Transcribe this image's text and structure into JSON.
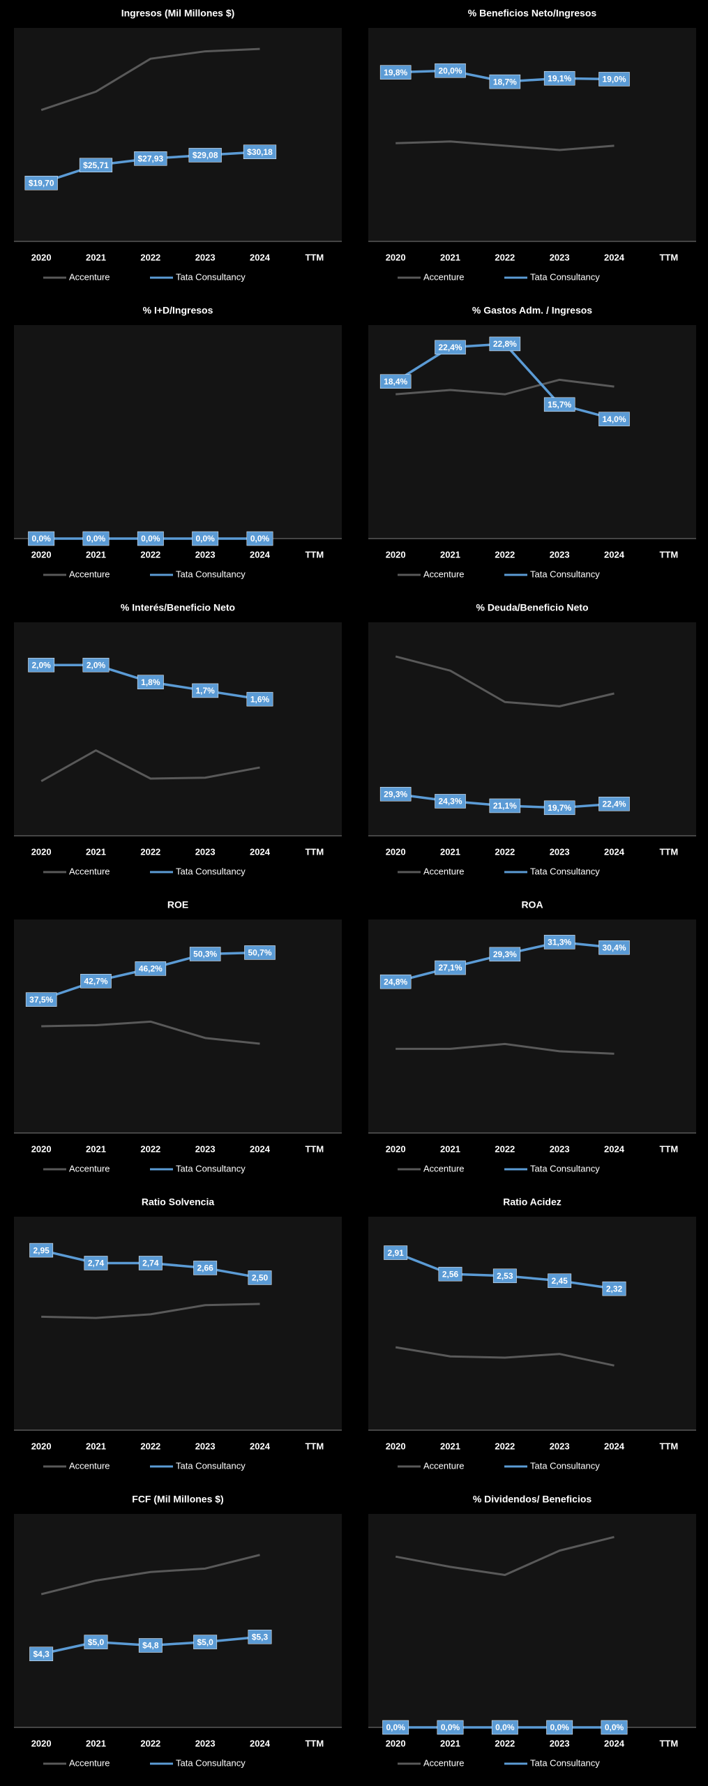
{
  "chart_data": [
    {
      "type": "line",
      "title": "Ingresos (Mil Millones $)",
      "categories": [
        "2020",
        "2021",
        "2022",
        "2023",
        "2024",
        "TTM"
      ],
      "ylim": [
        0,
        72
      ],
      "series": [
        {
          "name": "Accenture",
          "color": "#595959",
          "values": [
            44.3,
            50.5,
            61.6,
            64.1,
            64.9,
            null
          ]
        },
        {
          "name": "Tata Consultancy",
          "color": "#5b9bd5",
          "values": [
            19.7,
            25.71,
            27.93,
            29.08,
            30.18,
            null
          ],
          "value_labels": [
            "$19,70",
            "$25,71",
            "$27,93",
            "$29,08",
            "$30,18",
            null
          ]
        }
      ]
    },
    {
      "type": "line",
      "title": "% Beneficios Neto/Ingresos",
      "categories": [
        "2020",
        "2021",
        "2022",
        "2023",
        "2024",
        "TTM"
      ],
      "ylim": [
        0,
        25
      ],
      "series": [
        {
          "name": "Accenture",
          "color": "#595959",
          "values": [
            11.5,
            11.7,
            11.2,
            10.7,
            11.2,
            null
          ]
        },
        {
          "name": "Tata Consultancy",
          "color": "#5b9bd5",
          "values": [
            19.8,
            20.0,
            18.7,
            19.1,
            19.0,
            null
          ],
          "value_labels": [
            "19,8%",
            "20,0%",
            "18,7%",
            "19,1%",
            "19,0%",
            null
          ]
        }
      ]
    },
    {
      "type": "line",
      "title": "% I+D/Ingresos",
      "categories": [
        "2020",
        "2021",
        "2022",
        "2023",
        "2024",
        "TTM"
      ],
      "ylim": [
        0,
        1
      ],
      "series": [
        {
          "name": "Accenture",
          "color": "#595959",
          "values": [
            null,
            null,
            null,
            null,
            null,
            null
          ]
        },
        {
          "name": "Tata Consultancy",
          "color": "#5b9bd5",
          "values": [
            0.0,
            0.0,
            0.0,
            0.0,
            0.0,
            null
          ],
          "value_labels": [
            "0,0%",
            "0,0%",
            "0,0%",
            "0,0%",
            "0,0%",
            null
          ]
        }
      ]
    },
    {
      "type": "line",
      "title": "% Gastos Adm. / Ingresos",
      "categories": [
        "2020",
        "2021",
        "2022",
        "2023",
        "2024",
        "TTM"
      ],
      "ylim": [
        0,
        25
      ],
      "series": [
        {
          "name": "Accenture",
          "color": "#595959",
          "values": [
            16.9,
            17.4,
            16.9,
            18.6,
            17.8,
            null
          ]
        },
        {
          "name": "Tata Consultancy",
          "color": "#5b9bd5",
          "values": [
            18.4,
            22.4,
            22.8,
            15.7,
            14.0,
            null
          ],
          "value_labels": [
            "18,4%",
            "22,4%",
            "22,8%",
            "15,7%",
            "14,0%",
            null
          ]
        }
      ]
    },
    {
      "type": "line",
      "title": "% Interés/Beneficio  Neto",
      "categories": [
        "2020",
        "2021",
        "2022",
        "2023",
        "2024",
        "TTM"
      ],
      "ylim": [
        0,
        2.5
      ],
      "series": [
        {
          "name": "Accenture",
          "color": "#595959",
          "values": [
            0.64,
            1.0,
            0.67,
            0.68,
            0.8,
            null
          ]
        },
        {
          "name": "Tata Consultancy",
          "color": "#5b9bd5",
          "values": [
            2.0,
            2.0,
            1.8,
            1.7,
            1.6,
            null
          ],
          "value_labels": [
            "2,0%",
            "2,0%",
            "1,8%",
            "1,7%",
            "1,6%",
            null
          ]
        }
      ]
    },
    {
      "type": "line",
      "title": "% Deuda/Beneficio  Neto",
      "categories": [
        "2020",
        "2021",
        "2022",
        "2023",
        "2024",
        "TTM"
      ],
      "ylim": [
        0,
        150
      ],
      "series": [
        {
          "name": "Accenture",
          "color": "#595959",
          "values": [
            126,
            116,
            94,
            91,
            100,
            null
          ]
        },
        {
          "name": "Tata Consultancy",
          "color": "#5b9bd5",
          "values": [
            29.3,
            24.3,
            21.1,
            19.7,
            22.4,
            null
          ],
          "value_labels": [
            "29,3%",
            "24,3%",
            "21,1%",
            "19,7%",
            "22,4%",
            null
          ]
        }
      ]
    },
    {
      "type": "line",
      "title": "ROE",
      "categories": [
        "2020",
        "2021",
        "2022",
        "2023",
        "2024",
        "TTM"
      ],
      "ylim": [
        0,
        60
      ],
      "series": [
        {
          "name": "Accenture",
          "color": "#595959",
          "values": [
            30.0,
            30.3,
            31.3,
            26.7,
            25.1,
            null
          ]
        },
        {
          "name": "Tata Consultancy",
          "color": "#5b9bd5",
          "values": [
            37.5,
            42.7,
            46.2,
            50.3,
            50.7,
            null
          ],
          "value_labels": [
            "37,5%",
            "42,7%",
            "46,2%",
            "50,3%",
            "50,7%",
            null
          ]
        }
      ]
    },
    {
      "type": "line",
      "title": "ROA",
      "categories": [
        "2020",
        "2021",
        "2022",
        "2023",
        "2024",
        "TTM"
      ],
      "ylim": [
        0,
        35
      ],
      "series": [
        {
          "name": "Accenture",
          "color": "#595959",
          "values": [
            13.8,
            13.8,
            14.6,
            13.4,
            13.0,
            null
          ]
        },
        {
          "name": "Tata Consultancy",
          "color": "#5b9bd5",
          "values": [
            24.8,
            27.1,
            29.3,
            31.3,
            30.4,
            null
          ],
          "value_labels": [
            "24,8%",
            "27,1%",
            "29,3%",
            "31,3%",
            "30,4%",
            null
          ]
        }
      ]
    },
    {
      "type": "line",
      "title": "Ratio Solvencia",
      "categories": [
        "2020",
        "2021",
        "2022",
        "2023",
        "2024",
        "TTM"
      ],
      "ylim": [
        0,
        3.5
      ],
      "series": [
        {
          "name": "Accenture",
          "color": "#595959",
          "values": [
            1.86,
            1.84,
            1.9,
            2.05,
            2.07,
            null
          ]
        },
        {
          "name": "Tata Consultancy",
          "color": "#5b9bd5",
          "values": [
            2.95,
            2.74,
            2.74,
            2.66,
            2.5,
            null
          ],
          "value_labels": [
            "2,95",
            "2,74",
            "2,74",
            "2,66",
            "2,50",
            null
          ]
        }
      ]
    },
    {
      "type": "line",
      "title": "Ratio Acidez",
      "categories": [
        "2020",
        "2021",
        "2022",
        "2023",
        "2024",
        "TTM"
      ],
      "ylim": [
        0,
        3.5
      ],
      "series": [
        {
          "name": "Accenture",
          "color": "#595959",
          "values": [
            1.36,
            1.21,
            1.19,
            1.25,
            1.06,
            null
          ]
        },
        {
          "name": "Tata Consultancy",
          "color": "#5b9bd5",
          "values": [
            2.91,
            2.56,
            2.53,
            2.45,
            2.32,
            null
          ],
          "value_labels": [
            "2,91",
            "2,56",
            "2,53",
            "2,45",
            "2,32",
            null
          ]
        }
      ]
    },
    {
      "type": "line",
      "title": "FCF (Mil Millones $)",
      "categories": [
        "2020",
        "2021",
        "2022",
        "2023",
        "2024",
        "TTM"
      ],
      "ylim": [
        0,
        12.5
      ],
      "series": [
        {
          "name": "Accenture",
          "color": "#595959",
          "values": [
            7.8,
            8.6,
            9.1,
            9.3,
            10.1,
            null
          ]
        },
        {
          "name": "Tata Consultancy",
          "color": "#5b9bd5",
          "values": [
            4.3,
            5.0,
            4.8,
            5.0,
            5.3,
            null
          ],
          "value_labels": [
            "$4,3",
            "$5,0",
            "$4,8",
            "$5,0",
            "$5,3",
            null
          ]
        }
      ]
    },
    {
      "type": "line",
      "title": "% Dividendos/  Beneficios",
      "categories": [
        "2020",
        "2021",
        "2022",
        "2023",
        "2024",
        "TTM"
      ],
      "ylim": [
        0,
        50
      ],
      "series": [
        {
          "name": "Accenture",
          "color": "#595959",
          "values": [
            40.0,
            37.6,
            35.7,
            41.4,
            44.6,
            null
          ]
        },
        {
          "name": "Tata Consultancy",
          "color": "#5b9bd5",
          "values": [
            0.0,
            0.0,
            0.0,
            0.0,
            0.0,
            null
          ],
          "value_labels": [
            "0,0%",
            "0,0%",
            "0,0%",
            "0,0%",
            "0,0%",
            null
          ]
        }
      ]
    }
  ]
}
